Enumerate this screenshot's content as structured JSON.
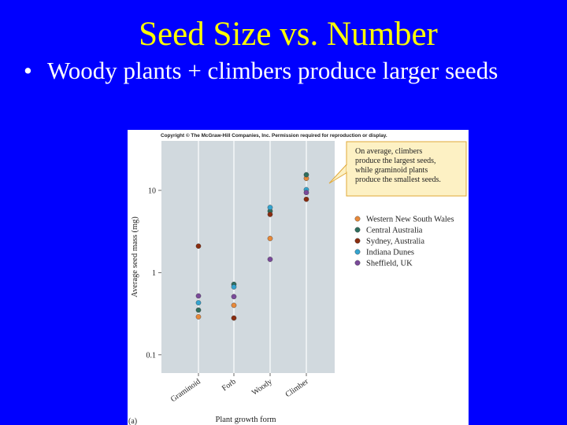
{
  "slide": {
    "title": "Seed Size vs. Number",
    "bullet_text": "Woody plants + climbers produce larger seeds",
    "bullet_marker": "•"
  },
  "figure": {
    "copyright": "Copyright © The McGraw-Hill Companies, Inc. Permission required for reproduction or display.",
    "panel_label": "(a)",
    "callout_lines": [
      "On average, climbers",
      "produce the largest seeds,",
      "while graminoid plants",
      "produce the smallest seeds."
    ],
    "colors": {
      "plot_bg": "#d1d9de",
      "callout_bg": "#fdf1c4",
      "callout_border": "#e0a93a"
    }
  },
  "chart_data": {
    "type": "scatter",
    "xlabel": "Plant growth form",
    "ylabel": "Average seed mass (mg)",
    "y_scale": "log",
    "ylim": [
      0.06,
      40
    ],
    "categories": [
      "Graminoid",
      "Forb",
      "Woody",
      "Climber"
    ],
    "y_ticks": [
      {
        "value": 0.1,
        "label": "0.1"
      },
      {
        "value": 1,
        "label": "1"
      },
      {
        "value": 10,
        "label": "10"
      }
    ],
    "legend_position": "right",
    "series": [
      {
        "name": "Western New South Wales",
        "color": "#e8893a",
        "values": [
          0.29,
          0.4,
          2.6,
          14.0
        ]
      },
      {
        "name": "Central Australia",
        "color": "#2f6e5e",
        "values": [
          0.35,
          0.72,
          5.6,
          15.5
        ]
      },
      {
        "name": "Sydney, Australia",
        "color": "#8a2d10",
        "values": [
          2.1,
          0.28,
          5.1,
          7.8
        ]
      },
      {
        "name": "Indiana Dunes",
        "color": "#35a4cf",
        "values": [
          0.43,
          0.67,
          6.2,
          10.2
        ]
      },
      {
        "name": "Sheffield, UK",
        "color": "#7a4a9a",
        "values": [
          0.52,
          0.51,
          1.45,
          9.4
        ]
      }
    ]
  }
}
